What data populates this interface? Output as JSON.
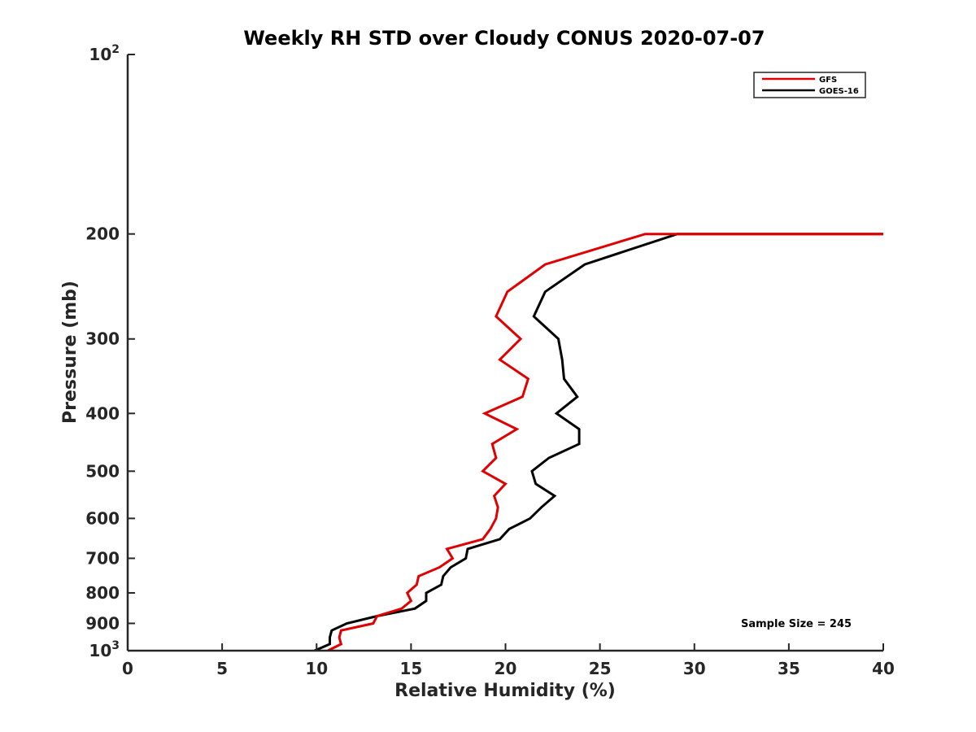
{
  "chart_data": {
    "type": "line",
    "title": "Weekly RH STD over Cloudy CONUS 2020-07-07",
    "xlabel": "Relative Humidity (%)",
    "ylabel": "Pressure (mb)",
    "xlim": [
      0,
      40
    ],
    "ylim": [
      100,
      1000
    ],
    "y_scale": "log",
    "y_reversed": true,
    "x_ticks": [
      "0",
      "5",
      "10",
      "15",
      "20",
      "25",
      "30",
      "35",
      "40"
    ],
    "y_ticks": [
      {
        "value": 100,
        "base": "10",
        "exp": "2"
      },
      {
        "value": 200,
        "label": "200"
      },
      {
        "value": 300,
        "label": "300"
      },
      {
        "value": 400,
        "label": "400"
      },
      {
        "value": 500,
        "label": "500"
      },
      {
        "value": 600,
        "label": "600"
      },
      {
        "value": 700,
        "label": "700"
      },
      {
        "value": 800,
        "label": "800"
      },
      {
        "value": 900,
        "label": "900"
      },
      {
        "value": 1000,
        "base": "10",
        "exp": "3"
      }
    ],
    "grid": false,
    "legend_position": "top-right",
    "annotation": "Sample Size = 245",
    "series": [
      {
        "name": "GFS",
        "color": "#e00000",
        "points": [
          [
            40,
            200
          ],
          [
            27.4,
            200
          ],
          [
            22.1,
            225
          ],
          [
            20.1,
            250
          ],
          [
            19.5,
            275
          ],
          [
            20.8,
            300
          ],
          [
            19.7,
            325
          ],
          [
            21.2,
            350
          ],
          [
            20.9,
            375
          ],
          [
            18.9,
            400
          ],
          [
            20.6,
            425
          ],
          [
            19.3,
            450
          ],
          [
            19.5,
            475
          ],
          [
            18.8,
            500
          ],
          [
            20.0,
            525
          ],
          [
            19.4,
            550
          ],
          [
            19.6,
            575
          ],
          [
            19.5,
            600
          ],
          [
            19.2,
            625
          ],
          [
            18.8,
            650
          ],
          [
            16.9,
            675
          ],
          [
            17.2,
            700
          ],
          [
            16.5,
            725
          ],
          [
            15.4,
            750
          ],
          [
            15.3,
            775
          ],
          [
            14.8,
            800
          ],
          [
            15.0,
            825
          ],
          [
            14.5,
            850
          ],
          [
            13.2,
            875
          ],
          [
            13.0,
            900
          ],
          [
            11.3,
            925
          ],
          [
            11.2,
            950
          ],
          [
            11.3,
            975
          ],
          [
            10.6,
            1000
          ],
          [
            11.1,
            1025
          ]
        ]
      },
      {
        "name": "GOES-16",
        "color": "#000000",
        "points": [
          [
            40,
            200
          ],
          [
            29.1,
            200
          ],
          [
            24.2,
            225
          ],
          [
            22.1,
            250
          ],
          [
            21.5,
            275
          ],
          [
            22.8,
            300
          ],
          [
            23.0,
            325
          ],
          [
            23.1,
            350
          ],
          [
            23.8,
            375
          ],
          [
            22.7,
            400
          ],
          [
            23.9,
            425
          ],
          [
            23.9,
            450
          ],
          [
            22.3,
            475
          ],
          [
            21.4,
            500
          ],
          [
            21.6,
            525
          ],
          [
            22.6,
            550
          ],
          [
            21.9,
            575
          ],
          [
            21.3,
            600
          ],
          [
            20.2,
            625
          ],
          [
            19.7,
            650
          ],
          [
            18.0,
            675
          ],
          [
            17.9,
            700
          ],
          [
            17.1,
            725
          ],
          [
            16.7,
            750
          ],
          [
            16.6,
            775
          ],
          [
            15.8,
            800
          ],
          [
            15.8,
            825
          ],
          [
            15.2,
            850
          ],
          [
            13.2,
            875
          ],
          [
            11.6,
            900
          ],
          [
            10.8,
            925
          ],
          [
            10.7,
            950
          ],
          [
            10.7,
            975
          ],
          [
            9.9,
            1000
          ],
          [
            9.4,
            1025
          ]
        ]
      }
    ]
  }
}
